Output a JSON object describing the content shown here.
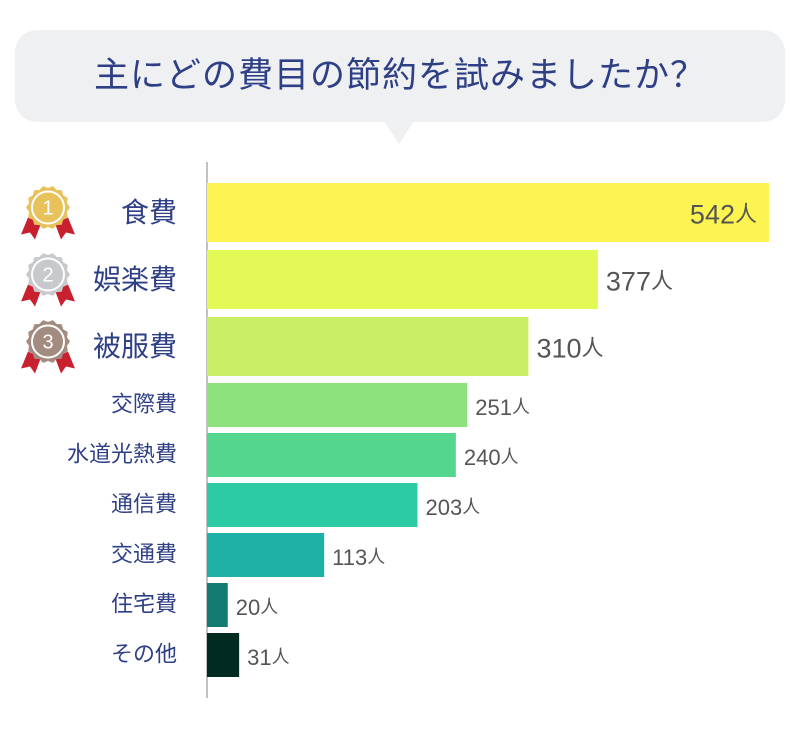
{
  "title": "主にどの費目の節約を試みましたか？",
  "chart_data": {
    "type": "bar",
    "orientation": "horizontal",
    "unit": "人",
    "categories": [
      "食費",
      "娯楽費",
      "被服費",
      "交際費",
      "水道光熱費",
      "通信費",
      "交通費",
      "住宅費",
      "その他"
    ],
    "values": [
      542,
      377,
      310,
      251,
      240,
      203,
      113,
      20,
      31
    ],
    "medals": [
      "1",
      "2",
      "3"
    ],
    "medal_colors": [
      "#e7c25a",
      "#c7c9cc",
      "#a48b80"
    ],
    "ribbon_color": "#c8202e",
    "bar_colors": [
      "#fdf452",
      "#e3f956",
      "#c9ef64",
      "#8ee27d",
      "#55d68f",
      "#2ccba3",
      "#1fb0a6",
      "#127a70",
      "#012b20"
    ],
    "category_label_color": "#2e3f86",
    "value_label_color": "#555555",
    "grid": false
  }
}
